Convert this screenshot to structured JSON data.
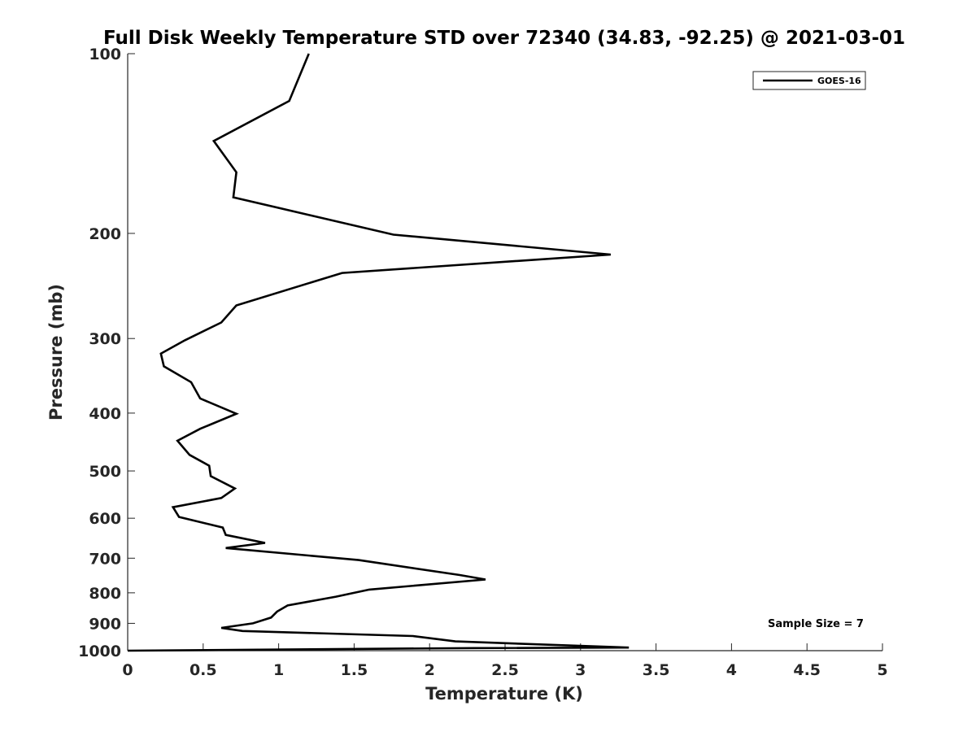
{
  "chart_data": {
    "type": "line",
    "title": "Full Disk Weekly Temperature STD over 72340 (34.83, -92.25) @ 2021-03-01",
    "xlabel": "Temperature (K)",
    "ylabel": "Pressure (mb)",
    "xlim": [
      0,
      5
    ],
    "ylim": [
      100,
      1000
    ],
    "yscale": "log",
    "yreversed": true,
    "grid": false,
    "legend_position": "top-right",
    "xticks": [
      0,
      0.5,
      1,
      1.5,
      2,
      2.5,
      3,
      3.5,
      4,
      4.5,
      5
    ],
    "xtick_labels": [
      "0",
      "0.5",
      "1",
      "1.5",
      "2",
      "2.5",
      "3",
      "3.5",
      "4",
      "4.5",
      "5"
    ],
    "yticks": [
      100,
      200,
      300,
      400,
      500,
      600,
      700,
      800,
      900,
      1000
    ],
    "ytick_labels": [
      "100",
      "200",
      "300",
      "400",
      "500",
      "600",
      "700",
      "800",
      "900",
      "1000"
    ],
    "annotation": "Sample Size = 7",
    "series": [
      {
        "name": "GOES-16",
        "color": "#000000",
        "x": [
          1.2,
          1.07,
          0.57,
          0.72,
          0.7,
          1.76,
          3.2,
          1.42,
          0.72,
          0.62,
          0.38,
          0.22,
          0.24,
          0.42,
          0.48,
          0.72,
          0.48,
          0.33,
          0.41,
          0.54,
          0.55,
          0.71,
          0.62,
          0.3,
          0.34,
          0.63,
          0.65,
          0.91,
          0.65,
          1.53,
          2.2,
          2.37,
          1.6,
          1.38,
          1.06,
          0.99,
          0.95,
          0.83,
          0.62,
          0.76,
          1.89,
          2.17,
          3.32,
          2.3,
          0.0
        ],
        "y": [
          100,
          120,
          140,
          158,
          174,
          201,
          217,
          233,
          264,
          282,
          302,
          318,
          334,
          355,
          378,
          401,
          425,
          445,
          470,
          490,
          510,
          535,
          555,
          575,
          597,
          622,
          640,
          660,
          673,
          705,
          747,
          760,
          790,
          812,
          840,
          860,
          880,
          900,
          916,
          927,
          945,
          965,
          988,
          990,
          1000
        ]
      }
    ]
  }
}
